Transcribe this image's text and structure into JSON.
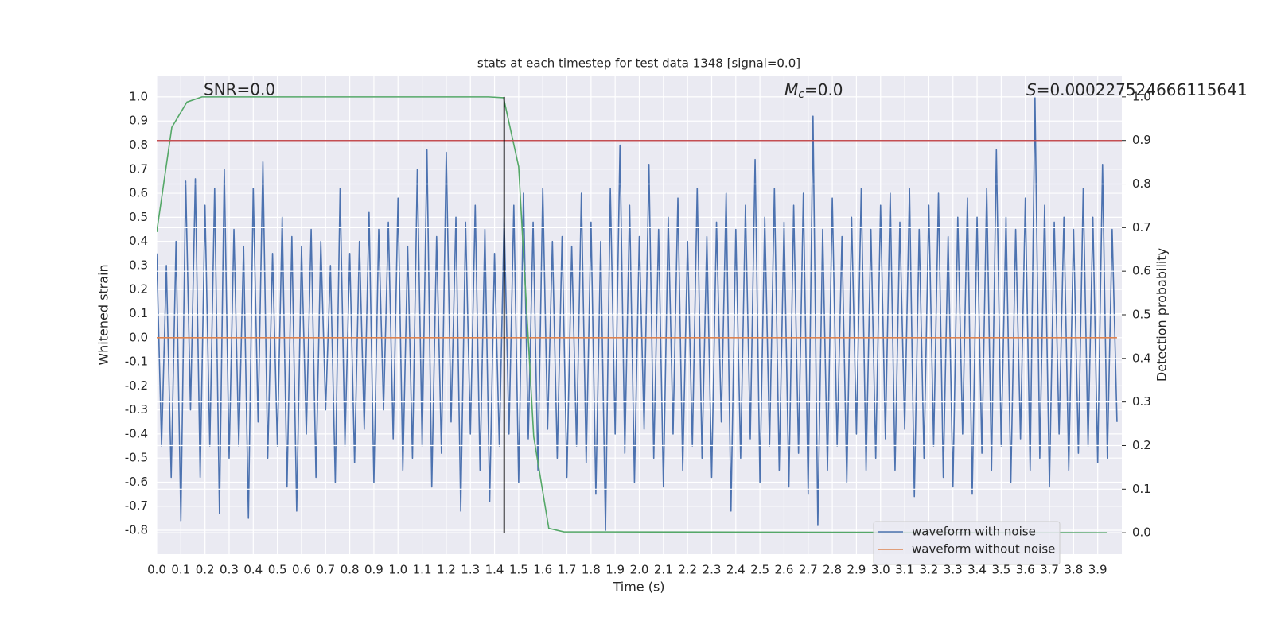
{
  "chart_data": {
    "type": "line",
    "title": "stats at each timestep for test data 1348 [signal=0.0]",
    "x_label": "Time (s)",
    "y_label": "Whitened strain",
    "y2_label": "Detection probability",
    "xlim": [
      0,
      4.0
    ],
    "ylim": [
      -0.899,
      1.089
    ],
    "y2lim": [
      -0.049,
      1.049
    ],
    "grid": true,
    "legend": "lower right",
    "xticks": [
      {
        "value": 0.0,
        "label": "0.0"
      },
      0.1,
      0.2,
      0.3,
      0.4,
      0.5,
      0.6,
      0.7,
      0.8,
      0.9,
      {
        "value": 1.0,
        "label": "1.0"
      },
      1.1,
      1.2,
      1.3,
      1.4,
      1.5,
      1.6,
      1.7,
      1.8,
      1.9,
      {
        "value": 2.0,
        "label": "2.0"
      },
      2.1,
      2.2,
      2.3,
      2.4,
      2.5,
      2.6,
      2.7,
      2.8,
      2.9,
      {
        "value": 3.0,
        "label": "3.0"
      },
      3.1,
      3.2,
      3.3,
      3.4,
      3.5,
      3.6,
      3.7,
      3.8,
      3.9
    ],
    "yticks": [
      -0.8,
      -0.7,
      -0.6,
      -0.5,
      -0.4,
      -0.3,
      -0.2,
      -0.1,
      {
        "value": 0.0,
        "label": "0.0"
      },
      0.1,
      0.2,
      0.3,
      0.4,
      0.5,
      0.6,
      0.7,
      0.8,
      0.9,
      {
        "value": 1.0,
        "label": "1.0"
      }
    ],
    "y2ticks": [
      {
        "value": 0.0,
        "label": "0.0"
      },
      0.1,
      0.2,
      0.3,
      0.4,
      0.5,
      0.6,
      0.7,
      0.8,
      0.9,
      {
        "value": 1.0,
        "label": "1.0"
      }
    ],
    "series": [
      {
        "name": "waveform with noise",
        "color": "#4c72b0",
        "x": [
          0.0,
          0.02,
          0.04,
          0.06,
          0.08,
          0.1,
          0.12,
          0.14,
          0.16,
          0.18,
          0.2,
          0.22,
          0.24,
          0.26,
          0.28,
          0.3,
          0.32,
          0.34,
          0.36,
          0.38,
          0.4,
          0.42,
          0.44,
          0.46,
          0.48,
          0.5,
          0.52,
          0.54,
          0.56,
          0.58,
          0.6,
          0.62,
          0.64,
          0.66,
          0.68,
          0.7,
          0.72,
          0.74,
          0.76,
          0.78,
          0.8,
          0.82,
          0.84,
          0.86,
          0.88,
          0.9,
          0.92,
          0.94,
          0.96,
          0.98,
          1.0,
          1.02,
          1.04,
          1.06,
          1.08,
          1.1,
          1.12,
          1.14,
          1.16,
          1.18,
          1.2,
          1.22,
          1.24,
          1.26,
          1.28,
          1.3,
          1.32,
          1.34,
          1.36,
          1.38,
          1.4,
          1.42,
          1.44,
          1.46,
          1.48,
          1.5,
          1.52,
          1.54,
          1.56,
          1.58,
          1.6,
          1.62,
          1.64,
          1.66,
          1.68,
          1.7,
          1.72,
          1.74,
          1.76,
          1.78,
          1.8,
          1.82,
          1.84,
          1.86,
          1.88,
          1.9,
          1.92,
          1.94,
          1.96,
          1.98,
          2.0,
          2.02,
          2.04,
          2.06,
          2.08,
          2.1,
          2.12,
          2.14,
          2.16,
          2.18,
          2.2,
          2.22,
          2.24,
          2.26,
          2.28,
          2.3,
          2.32,
          2.34,
          2.36,
          2.38,
          2.4,
          2.42,
          2.44,
          2.46,
          2.48,
          2.5,
          2.52,
          2.54,
          2.56,
          2.58,
          2.6,
          2.62,
          2.64,
          2.66,
          2.68,
          2.7,
          2.72,
          2.74,
          2.76,
          2.78,
          2.8,
          2.82,
          2.84,
          2.86,
          2.88,
          2.9,
          2.92,
          2.94,
          2.96,
          2.98,
          3.0,
          3.02,
          3.04,
          3.06,
          3.08,
          3.1,
          3.12,
          3.14,
          3.16,
          3.18,
          3.2,
          3.22,
          3.24,
          3.26,
          3.28,
          3.3,
          3.32,
          3.34,
          3.36,
          3.38,
          3.4,
          3.42,
          3.44,
          3.46,
          3.48,
          3.5,
          3.52,
          3.54,
          3.56,
          3.58,
          3.6,
          3.62,
          3.64,
          3.66,
          3.68,
          3.7,
          3.72,
          3.74,
          3.76,
          3.78,
          3.8,
          3.82,
          3.84,
          3.86,
          3.88,
          3.9,
          3.92,
          3.94,
          3.96,
          3.98
        ],
        "values": [
          0.35,
          -0.45,
          0.3,
          -0.58,
          0.4,
          -0.76,
          0.65,
          -0.3,
          0.66,
          -0.58,
          0.55,
          -0.45,
          0.62,
          -0.73,
          0.7,
          -0.5,
          0.45,
          -0.45,
          0.38,
          -0.75,
          0.62,
          -0.35,
          0.73,
          -0.5,
          0.35,
          -0.45,
          0.5,
          -0.62,
          0.42,
          -0.72,
          0.38,
          -0.4,
          0.45,
          -0.58,
          0.4,
          -0.3,
          0.3,
          -0.6,
          0.62,
          -0.45,
          0.35,
          -0.52,
          0.4,
          -0.38,
          0.52,
          -0.6,
          0.45,
          -0.3,
          0.48,
          -0.42,
          0.58,
          -0.55,
          0.38,
          -0.5,
          0.7,
          -0.45,
          0.78,
          -0.62,
          0.42,
          -0.48,
          0.77,
          -0.35,
          0.5,
          -0.72,
          0.48,
          -0.4,
          0.55,
          -0.55,
          0.45,
          -0.68,
          0.35,
          -0.45,
          0.5,
          -0.4,
          0.55,
          -0.6,
          0.6,
          -0.42,
          0.48,
          -0.55,
          0.62,
          -0.38,
          0.4,
          -0.5,
          0.42,
          -0.58,
          0.38,
          -0.45,
          0.6,
          -0.52,
          0.48,
          -0.65,
          0.4,
          -0.8,
          0.62,
          -0.4,
          0.8,
          -0.48,
          0.55,
          -0.6,
          0.42,
          -0.38,
          0.72,
          -0.5,
          0.45,
          -0.62,
          0.5,
          -0.4,
          0.58,
          -0.55,
          0.4,
          -0.45,
          0.62,
          -0.5,
          0.42,
          -0.58,
          0.48,
          -0.35,
          0.6,
          -0.72,
          0.45,
          -0.5,
          0.55,
          -0.42,
          0.74,
          -0.6,
          0.5,
          -0.45,
          0.62,
          -0.55,
          0.48,
          -0.62,
          0.55,
          -0.48,
          0.6,
          -0.65,
          0.92,
          -0.78,
          0.45,
          -0.55,
          0.58,
          -0.45,
          0.42,
          -0.6,
          0.5,
          -0.4,
          0.62,
          -0.55,
          0.45,
          -0.5,
          0.55,
          -0.42,
          0.6,
          -0.55,
          0.48,
          -0.38,
          0.62,
          -0.66,
          0.45,
          -0.5,
          0.55,
          -0.45,
          0.6,
          -0.58,
          0.42,
          -0.62,
          0.5,
          -0.4,
          0.58,
          -0.65,
          0.5,
          -0.48,
          0.62,
          -0.55,
          0.78,
          -0.45,
          0.5,
          -0.6,
          0.45,
          -0.42,
          0.58,
          -0.55,
          1.0,
          -0.5,
          0.55,
          -0.62,
          0.48,
          -0.4,
          0.5,
          -0.55,
          0.45,
          -0.48,
          0.62,
          -0.45,
          0.5,
          -0.52,
          0.72,
          -0.5,
          0.45,
          -0.35
        ]
      },
      {
        "name": "waveform without noise",
        "color": "#dd8452",
        "x": [
          0.0,
          3.98
        ],
        "values": [
          0.0,
          0.0
        ]
      },
      {
        "color": "#55a868",
        "axis": "y2",
        "x": [
          0.0,
          0.0625,
          0.125,
          0.1875,
          1.375,
          1.4375,
          1.5,
          1.5625,
          1.625,
          1.6875,
          3.9375
        ],
        "values": [
          0.69,
          0.93,
          0.988,
          1.0,
          1.0,
          0.998,
          0.84,
          0.22,
          0.01,
          0.002,
          0.0
        ]
      }
    ],
    "hlines": [
      {
        "value": 0.9,
        "axis": "y2",
        "color": "#c44e52"
      }
    ],
    "vlines": [
      {
        "x": 1.44,
        "ymin": 0.0,
        "ymax": 1.0,
        "axis": "y2",
        "color": "#000000"
      }
    ],
    "annotations": [
      {
        "text": "SNR=0.0"
      },
      {
        "symbol": "M",
        "subscript": "c",
        "text": "=0.0"
      },
      {
        "symbol": "S",
        "text": "=0.000227524666115641"
      }
    ]
  }
}
